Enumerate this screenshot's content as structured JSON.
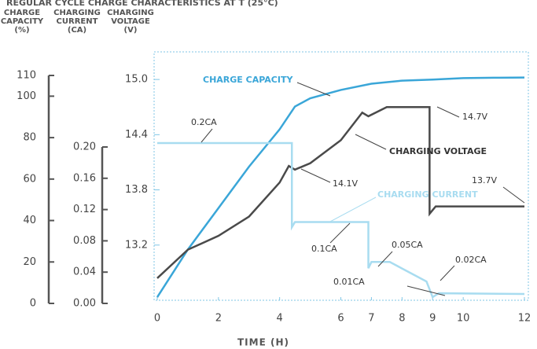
{
  "chart_data": {
    "type": "line",
    "title": "REGULAR CYCLE CHARGE CHARACTERISTICS AT T (25°C)",
    "y_label_lines": [
      "CHARGE",
      "CAPACITY",
      "(%)"
    ],
    "y2_label_lines": [
      "CHARGING",
      "CURRENT",
      "(CA)"
    ],
    "y3_label_lines": [
      "CHARGING",
      "VOLTAGE",
      "(V)"
    ],
    "x_label": "TIME (H)",
    "xlim": [
      0,
      12
    ],
    "xticks": [
      0,
      2,
      4,
      6,
      7,
      8,
      9,
      10,
      12
    ],
    "ylim": [
      0,
      110
    ],
    "yticks": [
      0,
      20,
      40,
      60,
      80,
      100,
      110
    ],
    "y2lim": [
      0,
      0.2
    ],
    "y2ticks": [
      {
        "value": 0,
        "label": "0.00"
      },
      0.04,
      0.08,
      0.12,
      0.16,
      {
        "value": 0.2,
        "label": "0.20"
      }
    ],
    "y3lim": [
      12.6,
      15.3
    ],
    "y3ticks": [
      13.2,
      13.8,
      14.4,
      {
        "value": 15,
        "label": "15.0"
      }
    ],
    "series": [
      {
        "name": "CHARGE CAPACITY",
        "color": "#3aa6d8",
        "axis": "y",
        "x": [
          0,
          1,
          2,
          3,
          4,
          4.5,
          5,
          6,
          7,
          8,
          9,
          10,
          11,
          12
        ],
        "values": [
          3,
          26,
          46,
          66,
          84,
          95,
          99,
          103,
          106,
          107.5,
          108,
          108.7,
          108.9,
          109
        ]
      },
      {
        "name": "CHARGING VOLTAGE",
        "color": "#4a4a4a",
        "axis": "y3",
        "x": [
          0,
          1,
          2,
          3,
          4,
          4.3,
          4.5,
          5,
          6,
          6.7,
          6.9,
          7.5,
          8.9,
          8.9,
          9.1,
          9.5,
          12
        ],
        "values": [
          12.84,
          13.15,
          13.3,
          13.51,
          13.88,
          14.06,
          14.02,
          14.09,
          14.34,
          14.64,
          14.6,
          14.7,
          14.7,
          13.54,
          13.62,
          13.62,
          13.62
        ]
      },
      {
        "name": "CHARGING CURRENT",
        "color": "#a8dcf0",
        "axis": "y2",
        "x": [
          0,
          4.4,
          4.4,
          4.5,
          6.9,
          6.9,
          7,
          7.6,
          8.8,
          9,
          9.2,
          12
        ],
        "values": [
          0.205,
          0.205,
          0.0975,
          0.104,
          0.104,
          0.045,
          0.053,
          0.053,
          0.028,
          0.008,
          0.013,
          0.012
        ]
      }
    ],
    "annotations": [
      "0.2CA",
      "0.1CA",
      "0.05CA",
      "0.02CA",
      "0.01CA",
      "14.1V",
      "14.7V",
      "13.7V"
    ]
  }
}
